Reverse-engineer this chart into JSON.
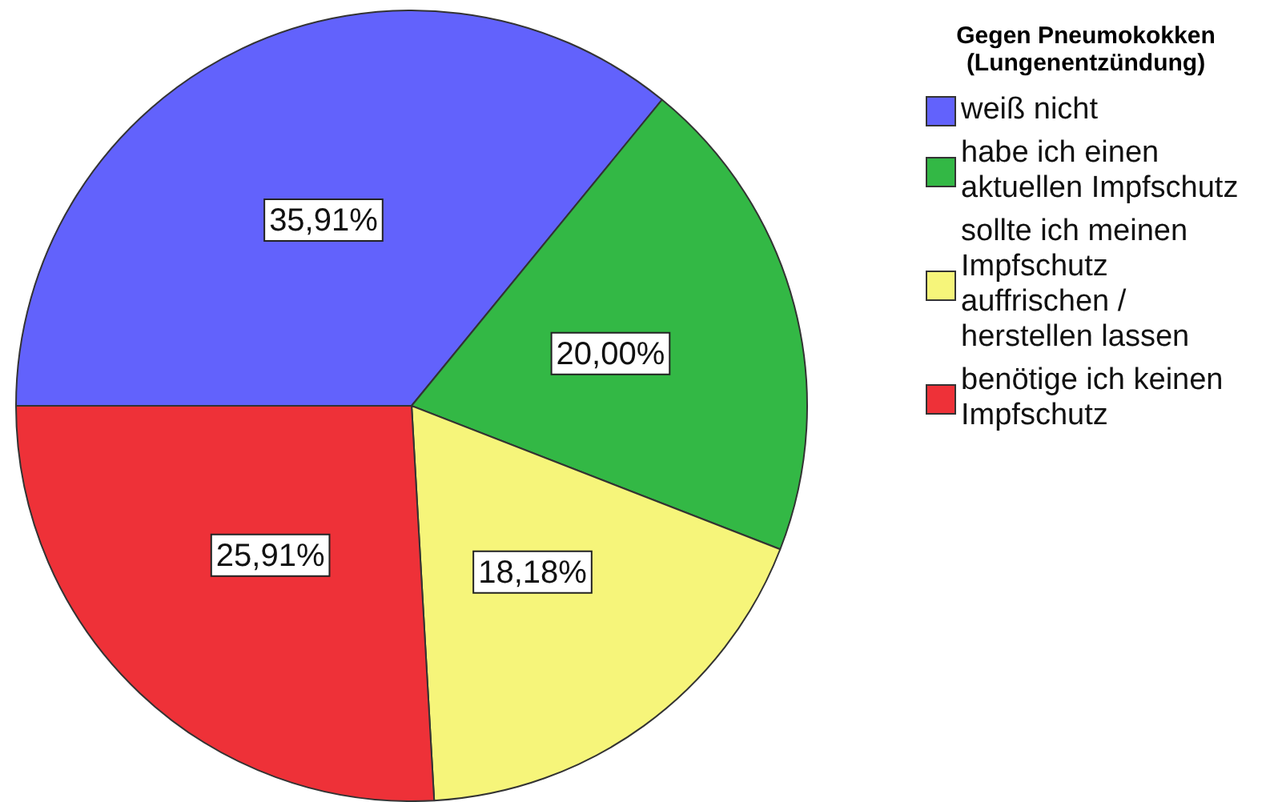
{
  "chart_data": {
    "type": "pie",
    "legend_title": "Gegen Pneumokokken (Lungenentzündung)",
    "categories": [
      "weiß nicht",
      "habe ich einen aktuellen Impfschutz",
      "sollte ich meinen Impfschutz auffrischen / herstellen lassen",
      "benötige ich keinen Impfschutz"
    ],
    "values": [
      35.91,
      20.0,
      18.18,
      25.91
    ],
    "colors": [
      "#6262fc",
      "#33b845",
      "#f6f57a",
      "#ee3138"
    ],
    "value_labels": [
      "35,91%",
      "20,00%",
      "18,18%",
      "25,91%"
    ],
    "legend": "right"
  }
}
